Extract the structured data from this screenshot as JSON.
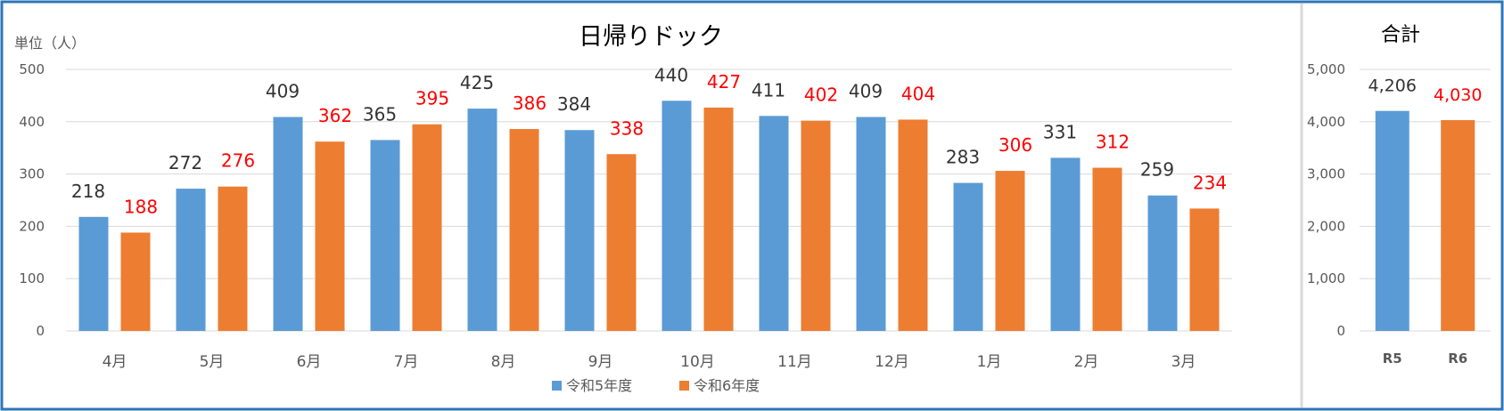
{
  "chart_data": [
    {
      "type": "bar",
      "title": "日帰りドック",
      "unit_label": "単位（人）",
      "categories": [
        "4月",
        "5月",
        "6月",
        "7月",
        "8月",
        "9月",
        "10月",
        "11月",
        "12月",
        "1月",
        "2月",
        "3月"
      ],
      "series": [
        {
          "name": "令和5年度",
          "color": "#5b9bd5",
          "label_color": "#333333",
          "values": [
            218,
            272,
            409,
            365,
            425,
            384,
            440,
            411,
            409,
            283,
            331,
            259
          ]
        },
        {
          "name": "令和6年度",
          "color": "#ed7d31",
          "label_color": "#ff0000",
          "values": [
            188,
            276,
            362,
            395,
            386,
            338,
            427,
            402,
            404,
            306,
            312,
            234
          ]
        }
      ],
      "ylim": [
        0,
        500
      ],
      "yticks": [
        "0",
        "100",
        "200",
        "300",
        "400",
        "500"
      ],
      "grid": true,
      "legend_position": "bottom"
    },
    {
      "type": "bar",
      "title": "合計",
      "categories": [
        "R5",
        "R6"
      ],
      "values": [
        4206,
        4030
      ],
      "value_labels": [
        "4,206",
        "4,030"
      ],
      "colors": [
        "#5b9bd5",
        "#ed7d31"
      ],
      "label_colors": [
        "#333333",
        "#ff0000"
      ],
      "ylim": [
        0,
        5000
      ],
      "yticks": [
        "0",
        "1,000",
        "2,000",
        "3,000",
        "4,000",
        "5,000"
      ],
      "grid": true
    }
  ],
  "colors": {
    "border": "#2e75b6",
    "divider": "#d9d9d9",
    "grid": "#d9d9d9",
    "axis_text": "#595959"
  }
}
